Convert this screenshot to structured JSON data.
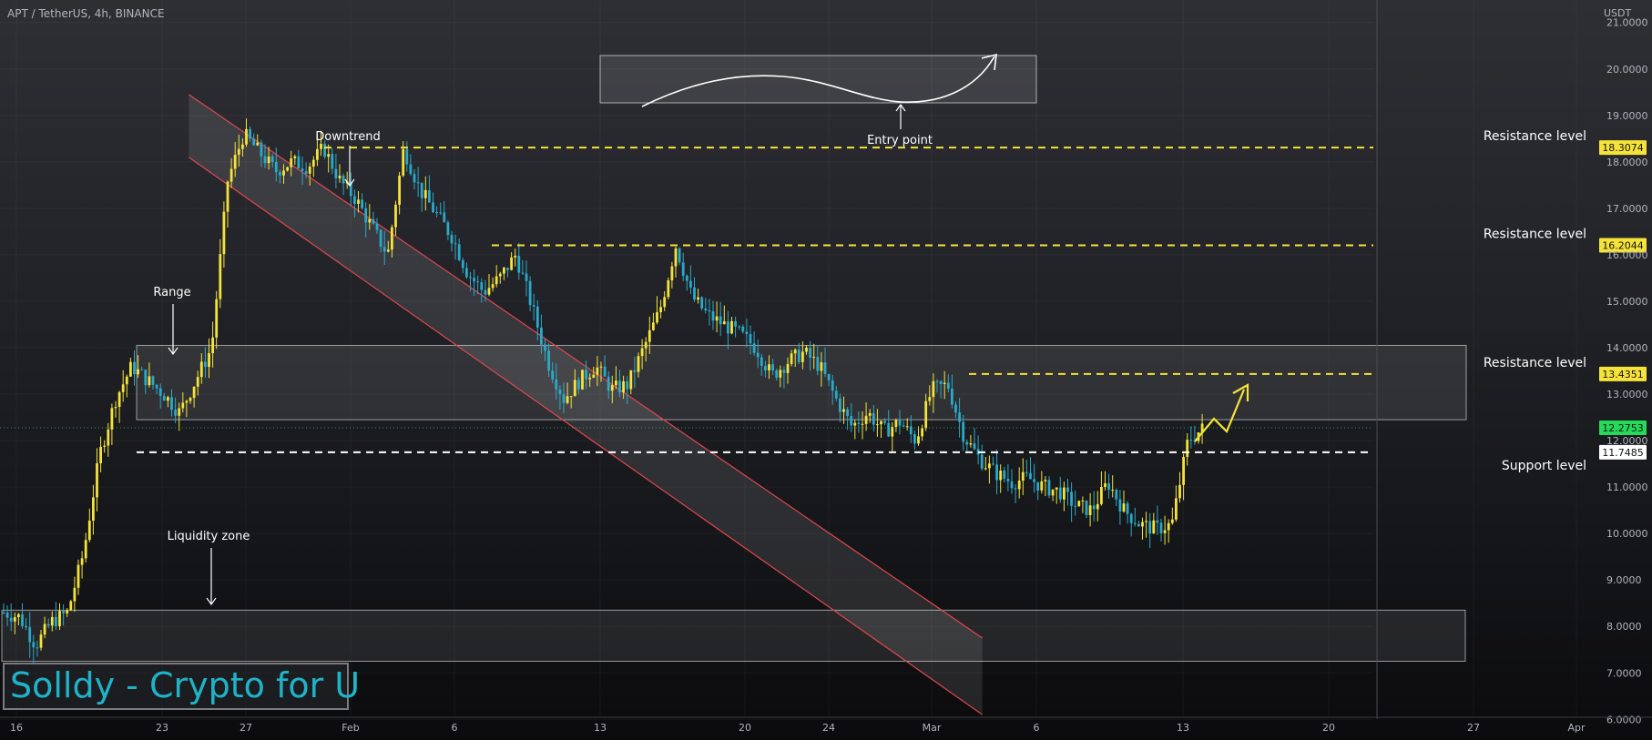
{
  "header": {
    "symbol": "APT / TetherUS, 4h, BINANCE",
    "currency": "USDT"
  },
  "watermark": {
    "text": "Solldy - Crypto for U"
  },
  "colors": {
    "bull": "#f5e339",
    "bear": "#2aa9c9",
    "resistance_line": "#f5e339",
    "support_line": "#ffffff",
    "channel_edge": "#e0474f",
    "last_price_badge": "#27d95b"
  },
  "chart_data": {
    "type": "candlestick",
    "interval": "4h",
    "ylim": [
      6.0,
      22.0
    ],
    "y_ticks": [
      "6.0000",
      "7.0000",
      "8.0000",
      "9.0000",
      "10.0000",
      "11.0000",
      "12.0000",
      "13.0000",
      "14.0000",
      "15.0000",
      "16.0000",
      "17.0000",
      "18.0000",
      "19.0000",
      "20.0000",
      "21.0000"
    ],
    "x_ticks": [
      "16",
      "23",
      "27",
      "Feb",
      "6",
      "13",
      "20",
      "24",
      "Mar",
      "6",
      "13",
      "20",
      "27",
      "Apr"
    ],
    "price_path": [
      [
        0,
        8.3
      ],
      [
        1,
        8.2
      ],
      [
        2,
        7.6
      ],
      [
        3,
        8.1
      ],
      [
        4,
        8.3
      ],
      [
        5,
        9.6
      ],
      [
        6,
        11.7
      ],
      [
        7,
        12.9
      ],
      [
        8,
        13.6
      ],
      [
        9,
        13.3
      ],
      [
        10,
        13.0
      ],
      [
        11,
        12.6
      ],
      [
        12,
        13.3
      ],
      [
        13,
        14.0
      ],
      [
        14,
        17.6
      ],
      [
        15,
        18.6
      ],
      [
        16,
        18.2
      ],
      [
        17,
        17.8
      ],
      [
        18,
        18.0
      ],
      [
        19,
        17.9
      ],
      [
        20,
        18.3
      ],
      [
        21,
        17.6
      ],
      [
        22,
        17.2
      ],
      [
        23,
        16.6
      ],
      [
        24,
        16.0
      ],
      [
        25,
        18.3
      ],
      [
        26,
        17.4
      ],
      [
        27,
        16.9
      ],
      [
        28,
        16.4
      ],
      [
        29,
        15.6
      ],
      [
        30,
        15.2
      ],
      [
        31,
        15.5
      ],
      [
        32,
        16.0
      ],
      [
        33,
        14.9
      ],
      [
        34,
        13.7
      ],
      [
        35,
        12.9
      ],
      [
        36,
        13.3
      ],
      [
        37,
        13.6
      ],
      [
        38,
        13.1
      ],
      [
        39,
        13.2
      ],
      [
        40,
        14.0
      ],
      [
        41,
        14.8
      ],
      [
        42,
        16.2
      ],
      [
        43,
        15.1
      ],
      [
        44,
        14.7
      ],
      [
        45,
        14.5
      ],
      [
        46,
        14.3
      ],
      [
        47,
        14.0
      ],
      [
        48,
        13.4
      ],
      [
        49,
        13.7
      ],
      [
        50,
        13.9
      ],
      [
        51,
        13.6
      ],
      [
        52,
        12.9
      ],
      [
        53,
        12.3
      ],
      [
        54,
        12.6
      ],
      [
        55,
        12.2
      ],
      [
        56,
        12.4
      ],
      [
        57,
        12.0
      ],
      [
        58,
        13.1
      ],
      [
        59,
        13.2
      ],
      [
        60,
        12.1
      ],
      [
        61,
        11.6
      ],
      [
        62,
        11.3
      ],
      [
        63,
        11.1
      ],
      [
        64,
        11.2
      ],
      [
        65,
        11.0
      ],
      [
        66,
        10.9
      ],
      [
        67,
        10.6
      ],
      [
        68,
        10.5
      ],
      [
        69,
        11.1
      ],
      [
        70,
        10.5
      ],
      [
        71,
        10.2
      ],
      [
        72,
        10.1
      ],
      [
        73,
        10.2
      ],
      [
        74,
        12.0
      ],
      [
        75,
        12.28
      ]
    ],
    "levels": [
      {
        "label": "Resistance level",
        "value": "18.3074",
        "price": 18.3074
      },
      {
        "label": "Resistance level",
        "value": "16.2044",
        "price": 16.2044
      },
      {
        "label": "Resistance level",
        "value": "13.4351",
        "price": 13.4351
      },
      {
        "label": "Support level",
        "value": "11.7485",
        "price": 11.7485
      }
    ],
    "last_price": {
      "value": "12.2753",
      "price": 12.2753
    },
    "zones": [
      {
        "name": "range-zone",
        "top": 14.05,
        "bottom": 12.45
      },
      {
        "name": "liquidity-zone",
        "top": 8.35,
        "bottom": 7.25
      }
    ],
    "channel": {
      "upper": [
        [
          0.1375,
          19.45
        ],
        [
          0.7153,
          7.75
        ]
      ],
      "lower": [
        [
          0.1375,
          18.1
        ],
        [
          0.7153,
          6.1
        ]
      ]
    },
    "annotations": [
      {
        "text": "Downtrend"
      },
      {
        "text": "Range"
      },
      {
        "text": "Liquidity zone"
      },
      {
        "text": "Entry point"
      }
    ]
  }
}
